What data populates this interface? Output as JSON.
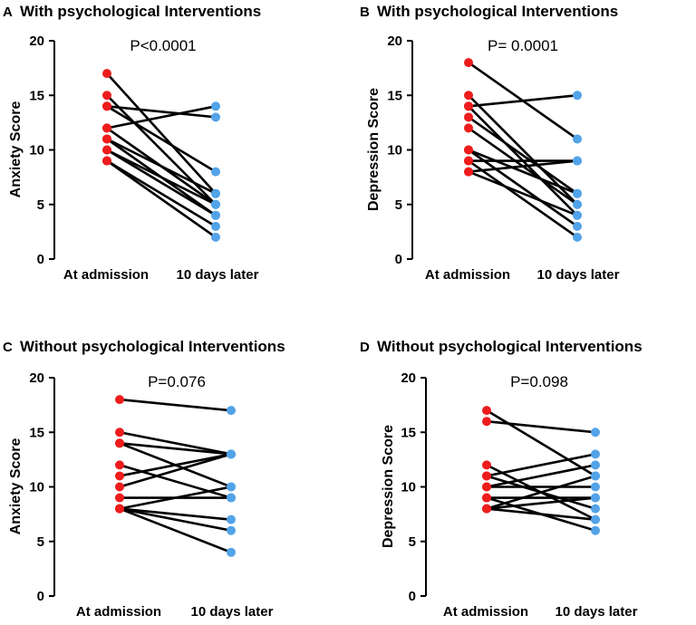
{
  "colors": {
    "before": "#ee1c1c",
    "after": "#52a3e8",
    "line": "#000000"
  },
  "chart_data": [
    {
      "type": "line",
      "panel": "A",
      "title": "With psychological Interventions",
      "pvalue": "P<0.0001",
      "ylabel": "Anxiety Score",
      "categories": [
        "At admission",
        "10 days later"
      ],
      "ylim": [
        0,
        20
      ],
      "yticks": [
        0,
        5,
        10,
        15,
        20
      ],
      "pairs": [
        [
          17,
          6
        ],
        [
          15,
          5
        ],
        [
          14,
          13
        ],
        [
          14,
          8
        ],
        [
          12,
          14
        ],
        [
          12,
          5
        ],
        [
          11,
          6
        ],
        [
          11,
          4
        ],
        [
          10,
          4
        ],
        [
          10,
          5
        ],
        [
          9,
          3
        ],
        [
          9,
          2
        ]
      ]
    },
    {
      "type": "line",
      "panel": "B",
      "title": "With psychological Interventions",
      "pvalue": "P= 0.0001",
      "ylabel": "Depression Score",
      "categories": [
        "At admission",
        "10 days later"
      ],
      "ylim": [
        0,
        20
      ],
      "yticks": [
        0,
        5,
        10,
        15,
        20
      ],
      "pairs": [
        [
          18,
          11
        ],
        [
          15,
          5
        ],
        [
          14,
          15
        ],
        [
          14,
          4
        ],
        [
          13,
          6
        ],
        [
          12,
          5
        ],
        [
          10,
          3
        ],
        [
          10,
          6
        ],
        [
          9,
          2
        ],
        [
          9,
          9
        ],
        [
          8,
          4
        ],
        [
          8,
          9
        ]
      ]
    },
    {
      "type": "line",
      "panel": "C",
      "title": "Without psychological Interventions",
      "pvalue": "P=0.076",
      "ylabel": "Anxiety Score",
      "categories": [
        "At admission",
        "10 days later"
      ],
      "ylim": [
        0,
        20
      ],
      "yticks": [
        0,
        5,
        10,
        15,
        20
      ],
      "pairs": [
        [
          18,
          17
        ],
        [
          15,
          13
        ],
        [
          14,
          13
        ],
        [
          14,
          10
        ],
        [
          12,
          9
        ],
        [
          11,
          13
        ],
        [
          10,
          13
        ],
        [
          9,
          9
        ],
        [
          8,
          7
        ],
        [
          8,
          6
        ],
        [
          8,
          4
        ],
        [
          8,
          10
        ]
      ]
    },
    {
      "type": "line",
      "panel": "D",
      "title": "Without psychological Interventions",
      "pvalue": "P=0.098",
      "ylabel": "Depression Score",
      "categories": [
        "At admission",
        "10 days later"
      ],
      "ylim": [
        0,
        20
      ],
      "yticks": [
        0,
        5,
        10,
        15,
        20
      ],
      "pairs": [
        [
          17,
          11
        ],
        [
          16,
          15
        ],
        [
          12,
          7
        ],
        [
          11,
          13
        ],
        [
          11,
          8
        ],
        [
          10,
          12
        ],
        [
          10,
          10
        ],
        [
          9,
          9
        ],
        [
          9,
          6
        ],
        [
          8,
          9
        ],
        [
          8,
          11
        ],
        [
          8,
          7
        ]
      ]
    }
  ]
}
